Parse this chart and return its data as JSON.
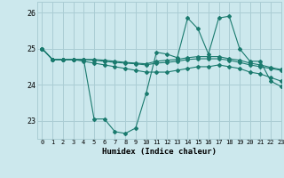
{
  "title": "",
  "xlabel": "Humidex (Indice chaleur)",
  "ylabel": "",
  "bg_color": "#cce8ed",
  "grid_color": "#aacdd4",
  "line_color": "#1a7a6e",
  "xlim": [
    -0.5,
    23
  ],
  "ylim": [
    22.5,
    26.3
  ],
  "yticks": [
    23,
    24,
    25,
    26
  ],
  "xticks": [
    0,
    1,
    2,
    3,
    4,
    5,
    6,
    7,
    8,
    9,
    10,
    11,
    12,
    13,
    14,
    15,
    16,
    17,
    18,
    19,
    20,
    21,
    22,
    23
  ],
  "series": [
    [
      25.0,
      24.7,
      24.7,
      24.7,
      24.7,
      23.05,
      23.05,
      22.7,
      22.65,
      22.8,
      23.75,
      24.9,
      24.85,
      24.75,
      25.85,
      25.55,
      24.85,
      25.85,
      25.9,
      25.0,
      24.65,
      24.65,
      24.1,
      23.95
    ],
    [
      25.0,
      24.7,
      24.7,
      24.7,
      24.65,
      24.6,
      24.55,
      24.5,
      24.45,
      24.4,
      24.35,
      24.35,
      24.35,
      24.4,
      24.45,
      24.5,
      24.5,
      24.55,
      24.5,
      24.45,
      24.35,
      24.3,
      24.2,
      24.1
    ],
    [
      25.0,
      24.7,
      24.7,
      24.7,
      24.7,
      24.68,
      24.65,
      24.62,
      24.6,
      24.58,
      24.55,
      24.6,
      24.62,
      24.65,
      24.7,
      24.72,
      24.72,
      24.72,
      24.68,
      24.62,
      24.55,
      24.5,
      24.45,
      24.4
    ],
    [
      25.0,
      24.7,
      24.7,
      24.7,
      24.7,
      24.7,
      24.68,
      24.65,
      24.62,
      24.6,
      24.58,
      24.65,
      24.68,
      24.7,
      24.75,
      24.78,
      24.78,
      24.78,
      24.72,
      24.68,
      24.6,
      24.55,
      24.48,
      24.42
    ]
  ]
}
